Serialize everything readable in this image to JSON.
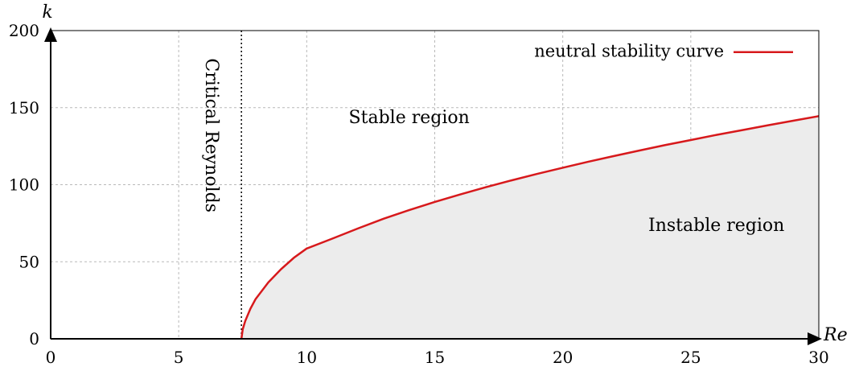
{
  "chart_data": {
    "type": "area",
    "xlabel": "Re",
    "ylabel": "k",
    "xlim": [
      0,
      30
    ],
    "ylim": [
      0,
      200
    ],
    "x_ticks": [
      0,
      5,
      10,
      15,
      20,
      25,
      30
    ],
    "y_ticks": [
      0,
      50,
      100,
      150,
      200
    ],
    "grid": true,
    "legend_position": "top-right",
    "series": [
      {
        "name": "neutral stability curve",
        "color": "#d7191c",
        "fill_below": "#ececec",
        "x": [
          7.45,
          7.5,
          7.6,
          7.8,
          8.0,
          8.5,
          9.0,
          9.5,
          10,
          11,
          12,
          13,
          14,
          15,
          16,
          17,
          18,
          19,
          20,
          21,
          22,
          23,
          24,
          25,
          26,
          27,
          28,
          29,
          30
        ],
        "y": [
          0,
          6.1,
          11.6,
          19.5,
          25.7,
          36.6,
          45.2,
          52.6,
          58.6,
          65.0,
          71.6,
          77.9,
          83.5,
          88.8,
          93.7,
          98.4,
          102.8,
          107.0,
          111.0,
          114.9,
          118.6,
          122.2,
          125.7,
          129.0,
          132.3,
          135.4,
          138.5,
          141.5,
          144.5
        ]
      }
    ],
    "vertical_line": {
      "x": 7.45,
      "label": "Critical Reynolds",
      "style": "dotted"
    },
    "annotations": [
      {
        "text": "Stable region",
        "x": 14.0,
        "y": 140
      },
      {
        "text": "Instable region",
        "x": 26.0,
        "y": 70
      }
    ]
  }
}
